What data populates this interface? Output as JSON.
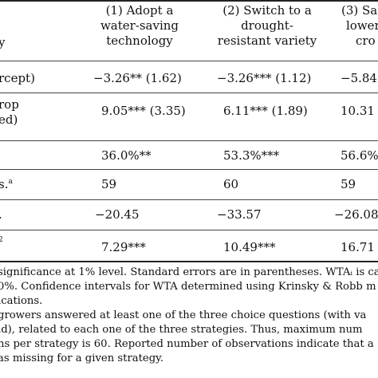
{
  "header": {
    "col0": "y",
    "col1": [
      "(1) Adopt a",
      "water-saving",
      "technology"
    ],
    "col2": [
      "(2) Switch to a",
      "drought-",
      "resistant variety"
    ],
    "col3": [
      "(3) Sa",
      "lower",
      "cro"
    ]
  },
  "rows": [
    {
      "label": [
        "rcept)"
      ],
      "c1": "−3.26** (1.62)",
      "c2": "−3.26*** (1.12)",
      "c3": "−5.84"
    },
    {
      "label": [
        "rop",
        "ed)"
      ],
      "c1": "9.05*** (3.35)",
      "c2": "6.11*** (1.89)",
      "c3": "10.31"
    },
    {
      "label": [
        ""
      ],
      "c1": "36.0%**",
      "c2": "53.3%***",
      "c3": "56.6%"
    },
    {
      "label": [
        "s."
      ],
      "label_sup": "a",
      "c1": "59",
      "c2": "60",
      "c3": "59"
    },
    {
      "label": [
        "."
      ],
      "c1": "−20.45",
      "c2": "−33.57",
      "c3": "−26.08"
    },
    {
      "label": [
        ""
      ],
      "label_sup": "2",
      "c1": "7.29***",
      "c2": "10.49***",
      "c3": "16.71"
    }
  ],
  "notes": [
    "significance at 1% level. Standard errors are in parentheses. WTAᵢ is ca",
    "0%. Confidence intervals for WTA determined using Krinsky & Robb m",
    "ications.",
    "growers answered at least one of the three choice questions (with va",
    "ld), related to each one of the three strategies. Thus, maximum num",
    "ns per strategy is 60. Reported number of observations indicate that a",
    "as missing for a given strategy."
  ]
}
